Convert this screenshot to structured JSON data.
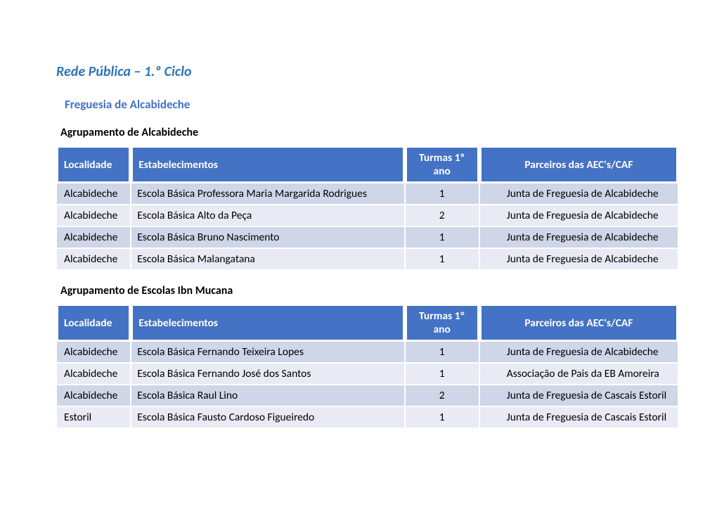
{
  "colors": {
    "title": "#2e75b6",
    "freguesia": "#4472c4",
    "header_bg": "#4472c4",
    "header_fg": "#ffffff",
    "row_dark": "#ced6e8",
    "row_light": "#e8ebf4",
    "text": "#000000",
    "background": "#ffffff"
  },
  "title": "Rede Pública – 1.º Ciclo",
  "freguesia": "Freguesia de Alcabideche",
  "column_widths_pct": [
    12,
    44,
    12,
    32
  ],
  "sections": [
    {
      "agrupamento": "Agrupamento de Alcabideche",
      "columns": [
        "Localidade",
        "Estabelecimentos",
        "Turmas 1º ano",
        "Parceiros das AEC's/CAF"
      ],
      "rows": [
        [
          "Alcabideche",
          "Escola Básica Professora Maria Margarida Rodrigues",
          "1",
          "Junta de Freguesia de Alcabideche"
        ],
        [
          "Alcabideche",
          "Escola Básica Alto da Peça",
          "2",
          "Junta de Freguesia de Alcabideche"
        ],
        [
          "Alcabideche",
          "Escola Básica Bruno Nascimento",
          "1",
          "Junta de Freguesia de Alcabideche"
        ],
        [
          "Alcabideche",
          "Escola Básica Malangatana",
          "1",
          "Junta de Freguesia de Alcabideche"
        ]
      ]
    },
    {
      "agrupamento": "Agrupamento de Escolas Ibn Mucana",
      "columns": [
        "Localidade",
        "Estabelecimentos",
        "Turmas 1º ano",
        "Parceiros das AEC's/CAF"
      ],
      "rows": [
        [
          "Alcabideche",
          "Escola Básica Fernando Teixeira Lopes",
          "1",
          "Junta de Freguesia de Alcabideche"
        ],
        [
          "Alcabideche",
          "Escola Básica Fernando José dos Santos",
          "1",
          "Associação de Pais da EB Amoreira"
        ],
        [
          "Alcabideche",
          "Escola Básica Raul Lino",
          "2",
          "Junta de Freguesia de Cascais Estoril"
        ],
        [
          "Estoril",
          "Escola Básica Fausto Cardoso Figueiredo",
          "1",
          "Junta de Freguesia de Cascais Estoril"
        ]
      ]
    }
  ]
}
